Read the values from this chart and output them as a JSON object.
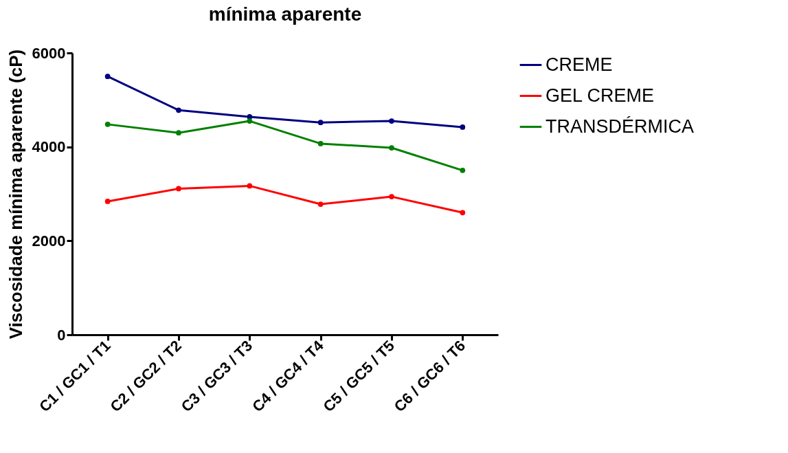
{
  "chart_data": {
    "type": "line",
    "title": "mínima aparente",
    "ylabel": "Viscosidade mínima aparente (cP)",
    "categories": [
      "C1 / GC1 / T1",
      "C2 / GC2 / T2",
      "C3 / GC3 / T3",
      "C4 / GC4 / T4",
      "C5 / GC5 / T5",
      "C6 / GC6 / T6"
    ],
    "series": [
      {
        "name": "CREME",
        "color": "#000080",
        "values": [
          5500,
          4780,
          4640,
          4520,
          4550,
          4420
        ]
      },
      {
        "name": "GEL CREME",
        "color": "#ff0000",
        "values": [
          2840,
          3110,
          3170,
          2780,
          2940,
          2600
        ]
      },
      {
        "name": "TRANSDÉRMICA",
        "color": "#008000",
        "values": [
          4480,
          4300,
          4550,
          4070,
          3980,
          3500
        ]
      }
    ],
    "ylim": [
      0,
      6000
    ],
    "yticks": [
      0,
      2000,
      4000,
      6000
    ],
    "grid": false,
    "legend": "top right",
    "marker": "circle",
    "line_style": "solid"
  }
}
